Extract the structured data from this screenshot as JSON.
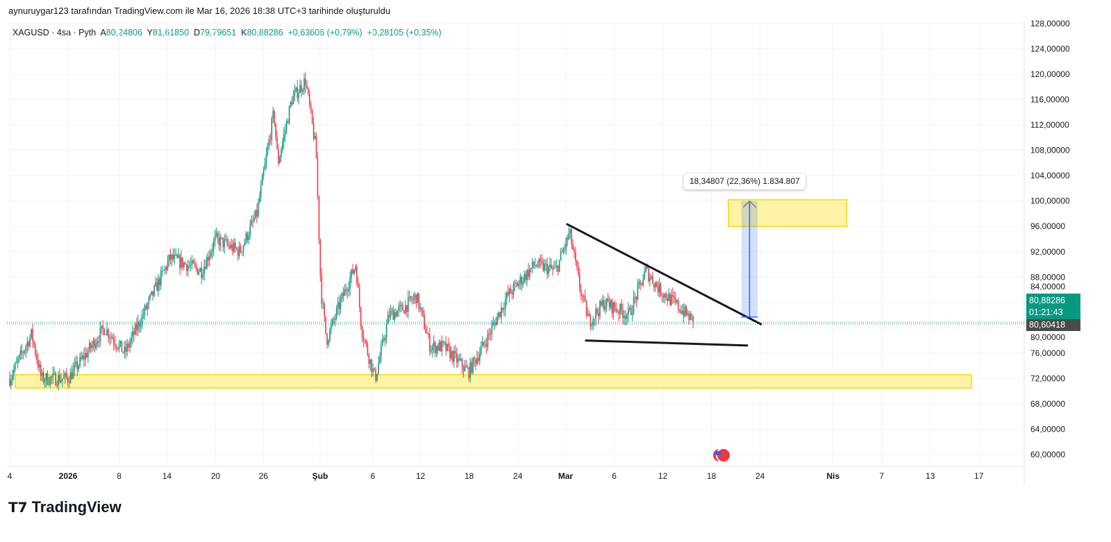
{
  "header": {
    "caption": "aynuruygar123 tarafından TradingView.com ile Mar 16, 2026 18:38 UTC+3 tarihinde oluşturuldu"
  },
  "legend": {
    "symbol": "XAGUSD · 4sa · Pyth",
    "o_label": "A",
    "o": "80,24806",
    "h_label": "Y",
    "h": "81,61850",
    "l_label": "D",
    "l": "79,79651",
    "c_label": "K",
    "c": "80,88286",
    "change": "+0,63606 (+0,79%)",
    "change2": "+0,28105 (+0,35%)"
  },
  "price_labels": {
    "last": "80,88286",
    "countdown": "01:21:43",
    "prev": "80,60418"
  },
  "measure": {
    "label": "18,34807 (22,36%) 1.834.807"
  },
  "brand": {
    "name": "TradingView"
  },
  "colors": {
    "up": "#089981",
    "down": "#f23645",
    "zone": "#fff3a6",
    "zone_border": "#f5e030",
    "measure": "#2962ff"
  },
  "chart_data": {
    "type": "candlestick",
    "symbol": "XAGUSD",
    "interval": "4h",
    "y_ticks": [
      "128,00000",
      "124,00000",
      "120,00000",
      "116,00000",
      "112,00000",
      "108,00000",
      "104,00000",
      "100,00000",
      "96,00000",
      "92,00000",
      "88,00000",
      "84,00000",
      "80,00000",
      "76,00000",
      "72,00000",
      "68,00000",
      "64,00000",
      "60,00000"
    ],
    "ylim": [
      60,
      128
    ],
    "x_ticks": [
      {
        "day": 0,
        "label": "4"
      },
      {
        "day": 7.2,
        "label": "2026"
      },
      {
        "day": 13.5,
        "label": "8"
      },
      {
        "day": 19.4,
        "label": "14"
      },
      {
        "day": 25.4,
        "label": "20"
      },
      {
        "day": 31.3,
        "label": "26"
      },
      {
        "day": 38.3,
        "label": "Şub"
      },
      {
        "day": 44.8,
        "label": "6"
      },
      {
        "day": 50.7,
        "label": "12"
      },
      {
        "day": 56.7,
        "label": "18"
      },
      {
        "day": 62.7,
        "label": "24"
      },
      {
        "day": 68.6,
        "label": "Mar"
      },
      {
        "day": 74.6,
        "label": "6"
      },
      {
        "day": 80.6,
        "label": "12"
      },
      {
        "day": 86.6,
        "label": "18"
      },
      {
        "day": 92.6,
        "label": "24"
      },
      {
        "day": 101.6,
        "label": "Nis"
      },
      {
        "day": 107.6,
        "label": "7"
      },
      {
        "day": 113.6,
        "label": "13"
      },
      {
        "day": 119.6,
        "label": "17"
      }
    ],
    "close_keyframes": [
      [
        0,
        72
      ],
      [
        2.7,
        79
      ],
      [
        3.9,
        72
      ],
      [
        7.2,
        72
      ],
      [
        9.5,
        76
      ],
      [
        11.7,
        80
      ],
      [
        14.2,
        76
      ],
      [
        16.8,
        83
      ],
      [
        19.8,
        91
      ],
      [
        23.7,
        89
      ],
      [
        25.4,
        94
      ],
      [
        28.4,
        92
      ],
      [
        30.5,
        98
      ],
      [
        32.6,
        114
      ],
      [
        33.1,
        106
      ],
      [
        34.8,
        116
      ],
      [
        36.5,
        119
      ],
      [
        37.8,
        108
      ],
      [
        38.4,
        86
      ],
      [
        39.1,
        78
      ],
      [
        40.8,
        84
      ],
      [
        42.7,
        90
      ],
      [
        43.4,
        80
      ],
      [
        44.2,
        76
      ],
      [
        45.1,
        72
      ],
      [
        46.8,
        82
      ],
      [
        48.5,
        83
      ],
      [
        50.2,
        85
      ],
      [
        51.9,
        77
      ],
      [
        53.6,
        77
      ],
      [
        56.6,
        73
      ],
      [
        58.8,
        78
      ],
      [
        61.4,
        85
      ],
      [
        64.8,
        90
      ],
      [
        67.4,
        89
      ],
      [
        69.1,
        95
      ],
      [
        70.4,
        86
      ],
      [
        71.5,
        81
      ],
      [
        73.4,
        84
      ],
      [
        76.4,
        82
      ],
      [
        78.5,
        89
      ],
      [
        80.2,
        86
      ],
      [
        82.8,
        83
      ],
      [
        84.5,
        80.88
      ]
    ],
    "last_price": 80.88286,
    "prev_close": 80.60418,
    "drawings": {
      "zones": [
        {
          "from_day": 88.7,
          "to_day": 103.3,
          "low": 96,
          "high": 100.2
        },
        {
          "from_day": 0.7,
          "to_day": 118.7,
          "low": 70.5,
          "high": 72.6
        }
      ],
      "trendlines": [
        {
          "from": [
            68.7,
            96.4
          ],
          "to": [
            92.8,
            80.5
          ]
        },
        {
          "from": [
            71.0,
            78.0
          ],
          "to": [
            91.1,
            77.2
          ]
        }
      ],
      "measure": {
        "from_day": 90.3,
        "to_day": 92.3,
        "low": 81.7,
        "high": 100
      }
    }
  }
}
